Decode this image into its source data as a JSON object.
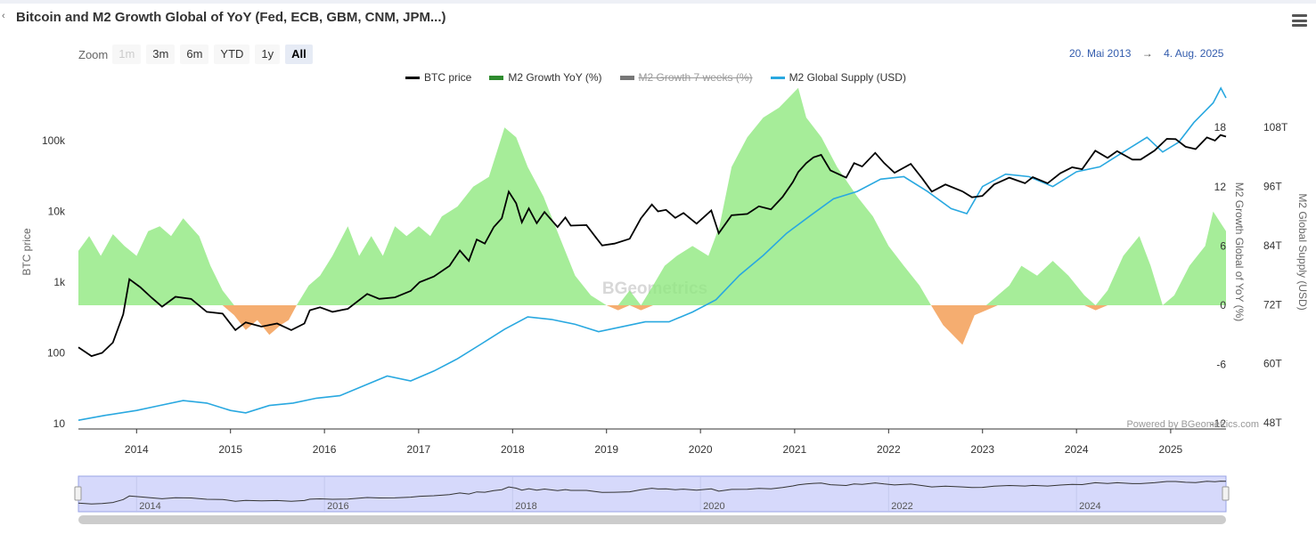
{
  "header": {
    "back_icon": "chevron-left-icon",
    "title": "Bitcoin and M2 Growth Global of YoY (Fed, ECB, GBM, CNM, JPM...)",
    "menu_icon": "hamburger-menu-icon"
  },
  "zoom": {
    "label": "Zoom",
    "buttons": [
      {
        "label": "1m",
        "state": "disabled"
      },
      {
        "label": "3m",
        "state": "normal"
      },
      {
        "label": "6m",
        "state": "normal"
      },
      {
        "label": "YTD",
        "state": "normal"
      },
      {
        "label": "1y",
        "state": "normal"
      },
      {
        "label": "All",
        "state": "active"
      }
    ]
  },
  "range": {
    "from": "20. Mai 2013",
    "arrow": "→",
    "to": "4. Aug. 2025"
  },
  "credits": "Powered by BGeometrics.com",
  "watermark": "BGeometrics",
  "chart_data": {
    "type": "line",
    "title": "Bitcoin and M2 Growth Global of YoY (Fed, ECB, GBM, CNM, JPM...)",
    "x_range": [
      "2013-05-20",
      "2025-08-04"
    ],
    "x_ticks": [
      "2014",
      "2015",
      "2016",
      "2017",
      "2018",
      "2019",
      "2020",
      "2021",
      "2022",
      "2023",
      "2024",
      "2025"
    ],
    "y_axes": [
      {
        "id": "btc",
        "title": "BTC price",
        "scale": "log",
        "ticks": [
          "10",
          "100",
          "1k",
          "10k",
          "100k"
        ],
        "range": [
          10,
          100000
        ]
      },
      {
        "id": "growth",
        "title": "M2 Growth Global of YoY (%)",
        "scale": "linear",
        "ticks": [
          "-12",
          "-6",
          "0",
          "6",
          "12",
          "18"
        ],
        "range": [
          -12,
          18
        ]
      },
      {
        "id": "supply",
        "title": "M2 Global Supply (USD)",
        "scale": "linear",
        "ticks": [
          "48T",
          "60T",
          "72T",
          "84T",
          "96T",
          "108T"
        ],
        "range": [
          48,
          108
        ]
      }
    ],
    "legend": {
      "position": "top-center"
    },
    "colors": {
      "btc": "#000000",
      "growth_pos": "#90e880",
      "growth_neg": "#f4a460",
      "growth_legend": "#2e8b2e",
      "seven_weeks": "#777777",
      "supply": "#29a8e0",
      "navigator": "#d6d9fb"
    },
    "series": [
      {
        "name": "BTC price",
        "axis": "btc",
        "type": "line",
        "visible": true,
        "points": [
          [
            "2013-05-20",
            120
          ],
          [
            "2013-07-10",
            90
          ],
          [
            "2013-08-20",
            100
          ],
          [
            "2013-10-01",
            140
          ],
          [
            "2013-11-10",
            350
          ],
          [
            "2013-12-04",
            1100
          ],
          [
            "2014-01-15",
            850
          ],
          [
            "2014-03-01",
            600
          ],
          [
            "2014-04-10",
            450
          ],
          [
            "2014-06-01",
            620
          ],
          [
            "2014-08-01",
            580
          ],
          [
            "2014-10-01",
            380
          ],
          [
            "2014-12-01",
            360
          ],
          [
            "2015-01-20",
            210
          ],
          [
            "2015-03-01",
            270
          ],
          [
            "2015-05-01",
            235
          ],
          [
            "2015-07-01",
            260
          ],
          [
            "2015-08-25",
            210
          ],
          [
            "2015-10-15",
            260
          ],
          [
            "2015-11-05",
            400
          ],
          [
            "2015-12-15",
            440
          ],
          [
            "2016-02-01",
            380
          ],
          [
            "2016-04-01",
            420
          ],
          [
            "2016-06-15",
            680
          ],
          [
            "2016-08-01",
            580
          ],
          [
            "2016-10-01",
            610
          ],
          [
            "2016-12-01",
            750
          ],
          [
            "2017-01-05",
            1000
          ],
          [
            "2017-03-01",
            1200
          ],
          [
            "2017-05-01",
            1700
          ],
          [
            "2017-06-10",
            2800
          ],
          [
            "2017-07-15",
            2000
          ],
          [
            "2017-08-15",
            4000
          ],
          [
            "2017-09-15",
            3500
          ],
          [
            "2017-10-20",
            6000
          ],
          [
            "2017-11-20",
            8000
          ],
          [
            "2017-12-17",
            19000
          ],
          [
            "2018-01-15",
            13000
          ],
          [
            "2018-02-06",
            7000
          ],
          [
            "2018-03-05",
            11000
          ],
          [
            "2018-04-05",
            6800
          ],
          [
            "2018-05-05",
            9800
          ],
          [
            "2018-06-25",
            6000
          ],
          [
            "2018-07-25",
            8200
          ],
          [
            "2018-08-15",
            6300
          ],
          [
            "2018-10-15",
            6400
          ],
          [
            "2018-11-20",
            4300
          ],
          [
            "2018-12-15",
            3300
          ],
          [
            "2019-02-01",
            3500
          ],
          [
            "2019-04-01",
            4100
          ],
          [
            "2019-05-15",
            8000
          ],
          [
            "2019-06-26",
            12500
          ],
          [
            "2019-07-20",
            10000
          ],
          [
            "2019-08-20",
            10500
          ],
          [
            "2019-09-25",
            8100
          ],
          [
            "2019-10-27",
            9500
          ],
          [
            "2019-12-17",
            6700
          ],
          [
            "2020-02-12",
            10300
          ],
          [
            "2020-03-12",
            4900
          ],
          [
            "2020-05-01",
            8800
          ],
          [
            "2020-07-01",
            9200
          ],
          [
            "2020-08-15",
            11800
          ],
          [
            "2020-10-01",
            10700
          ],
          [
            "2020-11-15",
            16000
          ],
          [
            "2020-12-25",
            26000
          ],
          [
            "2021-01-15",
            36000
          ],
          [
            "2021-02-15",
            48000
          ],
          [
            "2021-03-15",
            58000
          ],
          [
            "2021-04-14",
            63000
          ],
          [
            "2021-05-20",
            38000
          ],
          [
            "2021-07-20",
            30000
          ],
          [
            "2021-08-20",
            48000
          ],
          [
            "2021-09-20",
            43000
          ],
          [
            "2021-11-10",
            67000
          ],
          [
            "2021-12-15",
            48000
          ],
          [
            "2022-01-24",
            35000
          ],
          [
            "2022-03-28",
            47000
          ],
          [
            "2022-05-12",
            29000
          ],
          [
            "2022-06-18",
            19000
          ],
          [
            "2022-08-10",
            24000
          ],
          [
            "2022-10-15",
            19200
          ],
          [
            "2022-11-21",
            15800
          ],
          [
            "2022-12-31",
            16500
          ],
          [
            "2023-02-15",
            24000
          ],
          [
            "2023-04-15",
            30000
          ],
          [
            "2023-06-15",
            25000
          ],
          [
            "2023-07-15",
            30500
          ],
          [
            "2023-09-11",
            25000
          ],
          [
            "2023-10-30",
            34500
          ],
          [
            "2023-12-15",
            42000
          ],
          [
            "2024-01-23",
            39500
          ],
          [
            "2024-03-14",
            72000
          ],
          [
            "2024-05-01",
            57000
          ],
          [
            "2024-06-07",
            71000
          ],
          [
            "2024-08-05",
            54000
          ],
          [
            "2024-09-06",
            54000
          ],
          [
            "2024-10-30",
            72000
          ],
          [
            "2024-12-17",
            106000
          ],
          [
            "2025-01-20",
            105000
          ],
          [
            "2025-02-28",
            82000
          ],
          [
            "2025-04-08",
            76000
          ],
          [
            "2025-05-22",
            111000
          ],
          [
            "2025-06-22",
            100000
          ],
          [
            "2025-07-14",
            120000
          ],
          [
            "2025-08-04",
            114000
          ]
        ]
      },
      {
        "name": "M2 Growth YoY (%)",
        "axis": "growth",
        "type": "area",
        "visible": true,
        "points": [
          [
            "2013-05-20",
            5.5
          ],
          [
            "2013-07-01",
            7
          ],
          [
            "2013-08-15",
            5
          ],
          [
            "2013-10-01",
            7.2
          ],
          [
            "2013-11-15",
            6
          ],
          [
            "2014-01-01",
            5
          ],
          [
            "2014-02-15",
            7.5
          ],
          [
            "2014-04-01",
            8
          ],
          [
            "2014-05-15",
            7
          ],
          [
            "2014-07-01",
            8.8
          ],
          [
            "2014-09-01",
            7
          ],
          [
            "2014-10-15",
            4
          ],
          [
            "2014-12-01",
            1.5
          ],
          [
            "2015-01-15",
            -1
          ],
          [
            "2015-03-01",
            -2.5
          ],
          [
            "2015-04-15",
            -1.5
          ],
          [
            "2015-06-01",
            -3
          ],
          [
            "2015-07-15",
            -2
          ],
          [
            "2015-08-15",
            -1.5
          ],
          [
            "2015-09-15",
            0
          ],
          [
            "2015-11-01",
            2
          ],
          [
            "2015-12-15",
            3
          ],
          [
            "2016-02-01",
            5
          ],
          [
            "2016-04-01",
            8
          ],
          [
            "2016-05-15",
            5
          ],
          [
            "2016-07-01",
            7
          ],
          [
            "2016-08-15",
            5
          ],
          [
            "2016-10-01",
            8
          ],
          [
            "2016-11-15",
            7
          ],
          [
            "2017-01-01",
            8
          ],
          [
            "2017-02-15",
            7
          ],
          [
            "2017-04-01",
            9
          ],
          [
            "2017-06-01",
            10
          ],
          [
            "2017-08-01",
            12
          ],
          [
            "2017-10-01",
            13
          ],
          [
            "2017-12-01",
            18
          ],
          [
            "2018-01-15",
            17
          ],
          [
            "2018-03-01",
            14
          ],
          [
            "2018-05-01",
            11
          ],
          [
            "2018-07-01",
            7
          ],
          [
            "2018-09-01",
            3
          ],
          [
            "2018-11-01",
            1
          ],
          [
            "2019-01-01",
            0
          ],
          [
            "2019-02-15",
            -0.5
          ],
          [
            "2019-04-01",
            1.5
          ],
          [
            "2019-05-15",
            -0.5
          ],
          [
            "2019-07-01",
            2
          ],
          [
            "2019-08-15",
            4
          ],
          [
            "2019-10-01",
            5
          ],
          [
            "2019-12-01",
            6
          ],
          [
            "2020-02-01",
            5
          ],
          [
            "2020-03-15",
            8
          ],
          [
            "2020-05-01",
            14
          ],
          [
            "2020-07-01",
            17
          ],
          [
            "2020-09-01",
            19
          ],
          [
            "2020-11-01",
            20
          ],
          [
            "2021-01-15",
            22
          ],
          [
            "2021-02-15",
            19
          ],
          [
            "2021-04-15",
            17
          ],
          [
            "2021-06-15",
            14
          ],
          [
            "2021-09-01",
            11
          ],
          [
            "2021-11-01",
            9
          ],
          [
            "2022-01-01",
            6
          ],
          [
            "2022-03-01",
            4
          ],
          [
            "2022-05-01",
            2
          ],
          [
            "2022-06-15",
            0
          ],
          [
            "2022-08-01",
            -2
          ],
          [
            "2022-10-15",
            -4
          ],
          [
            "2022-12-01",
            -1
          ],
          [
            "2023-01-15",
            -0.5
          ],
          [
            "2023-03-01",
            1
          ],
          [
            "2023-04-15",
            2
          ],
          [
            "2023-06-01",
            4
          ],
          [
            "2023-08-01",
            3
          ],
          [
            "2023-10-01",
            4.5
          ],
          [
            "2023-12-01",
            3
          ],
          [
            "2024-02-01",
            1
          ],
          [
            "2024-03-15",
            -0.5
          ],
          [
            "2024-05-01",
            1.5
          ],
          [
            "2024-07-01",
            5
          ],
          [
            "2024-09-01",
            7
          ],
          [
            "2024-10-15",
            4
          ],
          [
            "2024-12-01",
            0
          ],
          [
            "2025-01-15",
            1
          ],
          [
            "2025-03-15",
            4
          ],
          [
            "2025-05-15",
            6
          ],
          [
            "2025-06-15",
            9.5
          ],
          [
            "2025-08-04",
            7.5
          ]
        ]
      },
      {
        "name": "M2 Growth 7 weeks (%)",
        "axis": "growth",
        "type": "line",
        "visible": false,
        "points": []
      },
      {
        "name": "M2 Global Supply (USD)",
        "axis": "supply",
        "type": "line",
        "visible": true,
        "points": [
          [
            "2013-05-20",
            48.5
          ],
          [
            "2013-09-01",
            49.5
          ],
          [
            "2014-01-01",
            50.5
          ],
          [
            "2014-04-01",
            51.5
          ],
          [
            "2014-07-01",
            52.5
          ],
          [
            "2014-10-01",
            52
          ],
          [
            "2015-01-01",
            50.5
          ],
          [
            "2015-03-01",
            50
          ],
          [
            "2015-06-01",
            51.5
          ],
          [
            "2015-09-01",
            52
          ],
          [
            "2015-12-01",
            53
          ],
          [
            "2016-03-01",
            53.5
          ],
          [
            "2016-06-01",
            55.5
          ],
          [
            "2016-09-01",
            57.5
          ],
          [
            "2016-12-01",
            56.5
          ],
          [
            "2017-03-01",
            58.5
          ],
          [
            "2017-06-01",
            61
          ],
          [
            "2017-09-01",
            64
          ],
          [
            "2017-12-01",
            67
          ],
          [
            "2018-03-01",
            69.5
          ],
          [
            "2018-06-01",
            69
          ],
          [
            "2018-09-01",
            68
          ],
          [
            "2018-12-01",
            66.5
          ],
          [
            "2019-03-01",
            67.5
          ],
          [
            "2019-06-01",
            68.5
          ],
          [
            "2019-09-01",
            68.5
          ],
          [
            "2019-12-01",
            70.5
          ],
          [
            "2020-03-01",
            73
          ],
          [
            "2020-06-01",
            78
          ],
          [
            "2020-09-01",
            82
          ],
          [
            "2020-12-01",
            86.5
          ],
          [
            "2021-03-01",
            90
          ],
          [
            "2021-06-01",
            93.5
          ],
          [
            "2021-09-01",
            95
          ],
          [
            "2021-12-01",
            97.5
          ],
          [
            "2022-03-01",
            98
          ],
          [
            "2022-06-01",
            95
          ],
          [
            "2022-09-01",
            91.5
          ],
          [
            "2022-11-01",
            90.5
          ],
          [
            "2023-01-01",
            96
          ],
          [
            "2023-04-01",
            98.5
          ],
          [
            "2023-07-01",
            98
          ],
          [
            "2023-10-01",
            96
          ],
          [
            "2024-01-01",
            99
          ],
          [
            "2024-04-01",
            100
          ],
          [
            "2024-07-01",
            103
          ],
          [
            "2024-10-01",
            106
          ],
          [
            "2024-12-01",
            103
          ],
          [
            "2025-02-01",
            105
          ],
          [
            "2025-04-01",
            109
          ],
          [
            "2025-06-15",
            113
          ],
          [
            "2025-07-15",
            116
          ],
          [
            "2025-08-04",
            114
          ]
        ]
      }
    ]
  }
}
